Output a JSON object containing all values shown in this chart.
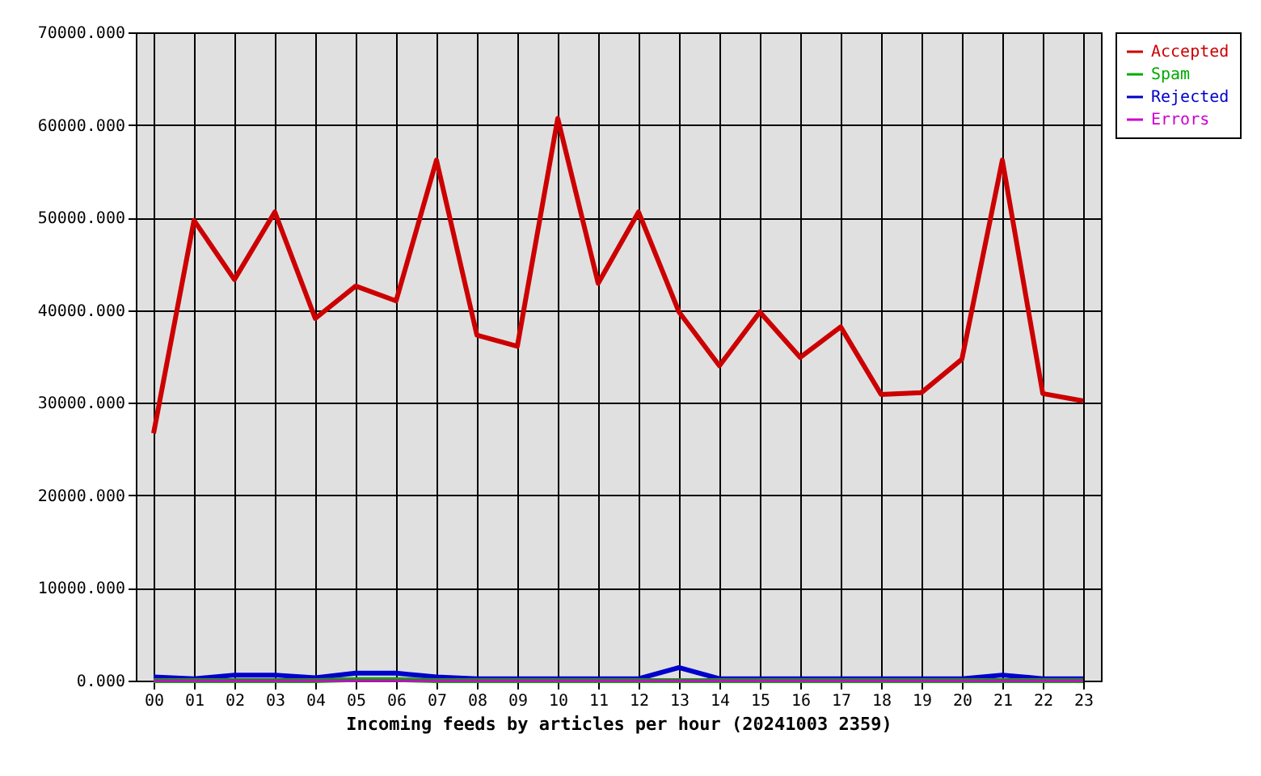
{
  "chart_data": {
    "type": "line",
    "xlabel": "Incoming feeds by articles per hour (20241003 2359)",
    "categories": [
      "00",
      "01",
      "02",
      "03",
      "04",
      "05",
      "06",
      "07",
      "08",
      "09",
      "10",
      "11",
      "12",
      "13",
      "14",
      "15",
      "16",
      "17",
      "18",
      "19",
      "20",
      "21",
      "22",
      "23"
    ],
    "series": [
      {
        "name": "Accepted",
        "color": "#cc0000",
        "values": [
          26700,
          49700,
          43300,
          50600,
          39100,
          42600,
          41000,
          56200,
          37300,
          36100,
          60700,
          42900,
          50600,
          39800,
          34000,
          39800,
          34900,
          38200,
          30900,
          31100,
          34700,
          56200,
          31000,
          30200
        ]
      },
      {
        "name": "Spam",
        "color": "#00aa00",
        "values": [
          0,
          0,
          0,
          0,
          0,
          100,
          100,
          0,
          0,
          0,
          0,
          0,
          0,
          0,
          0,
          0,
          0,
          0,
          0,
          0,
          0,
          0,
          0,
          0
        ]
      },
      {
        "name": "Rejected",
        "color": "#0000cc",
        "values": [
          400,
          200,
          600,
          600,
          300,
          800,
          800,
          400,
          200,
          200,
          200,
          200,
          200,
          1400,
          200,
          200,
          200,
          200,
          200,
          200,
          200,
          600,
          200,
          200
        ]
      },
      {
        "name": "Errors",
        "color": "#cc00cc",
        "values": [
          0,
          0,
          0,
          0,
          0,
          0,
          0,
          0,
          0,
          0,
          0,
          0,
          0,
          0,
          0,
          0,
          0,
          0,
          0,
          0,
          0,
          0,
          0,
          0
        ]
      }
    ],
    "ylim": [
      0,
      70000
    ],
    "yticks": [
      {
        "value": 0,
        "label": "0.000"
      },
      {
        "value": 10000,
        "label": "10000.000"
      },
      {
        "value": 20000,
        "label": "20000.000"
      },
      {
        "value": 30000,
        "label": "30000.000"
      },
      {
        "value": 40000,
        "label": "40000.000"
      },
      {
        "value": 50000,
        "label": "50000.000"
      },
      {
        "value": 60000,
        "label": "60000.000"
      },
      {
        "value": 70000,
        "label": "70000.000"
      }
    ],
    "grid": true,
    "legend": "top right",
    "line_style": "solid"
  }
}
